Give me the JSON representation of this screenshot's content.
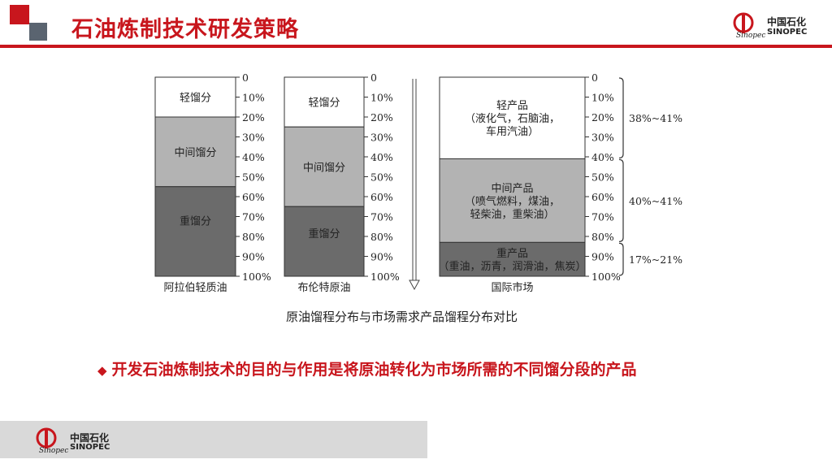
{
  "slide": {
    "title": "石油炼制技术研发策略",
    "caption": "原油馏程分布与市场需求产品馏程分布对比",
    "bullet": "开发石油炼制技术的目的与作用是将原油转化为市场所需的不同馏分段的产品",
    "bullet_icon": "diamond-bullet-icon"
  },
  "brand": {
    "name_cn": "中国石化",
    "name_en": "SINOPEC",
    "accent_color": "#c8161d"
  },
  "chart_data": {
    "type": "stacked-column",
    "y_ticks": [
      "0",
      "10%",
      "20%",
      "30%",
      "40%",
      "50%",
      "60%",
      "70%",
      "80%",
      "90%",
      "100%"
    ],
    "ylim": [
      0,
      100
    ],
    "columns": [
      {
        "name": "阿拉伯轻质油",
        "segments": [
          {
            "label": "轻馏分",
            "start": 0,
            "end": 20,
            "color": "#ffffff"
          },
          {
            "label": "中间馏分",
            "start": 20,
            "end": 55,
            "color": "#b3b3b3"
          },
          {
            "label": "重馏分",
            "start": 55,
            "end": 100,
            "color": "#6b6b6b"
          }
        ]
      },
      {
        "name": "布伦特原油",
        "segments": [
          {
            "label": "轻馏分",
            "start": 0,
            "end": 25,
            "color": "#ffffff"
          },
          {
            "label": "中间馏分",
            "start": 25,
            "end": 65,
            "color": "#b3b3b3"
          },
          {
            "label": "重馏分",
            "start": 65,
            "end": 100,
            "color": "#6b6b6b"
          }
        ]
      },
      {
        "name": "国际市场",
        "segments": [
          {
            "label": "轻产品\n（液化气，石脑油，\n车用汽油）",
            "start": 0,
            "end": 41,
            "color": "#ffffff"
          },
          {
            "label": "中间产品\n（喷气燃料，煤油，\n轻柴油，重柴油）",
            "start": 41,
            "end": 83,
            "color": "#b3b3b3"
          },
          {
            "label": "重产品\n（重油，沥青，润滑油，焦炭）",
            "start": 83,
            "end": 100,
            "color": "#6b6b6b"
          }
        ]
      }
    ],
    "ranges": [
      {
        "label": "38%~41%",
        "start": 0,
        "end": 41
      },
      {
        "label": "40%~41%",
        "start": 41,
        "end": 83
      },
      {
        "label": "17%~21%",
        "start": 83,
        "end": 100
      }
    ]
  }
}
